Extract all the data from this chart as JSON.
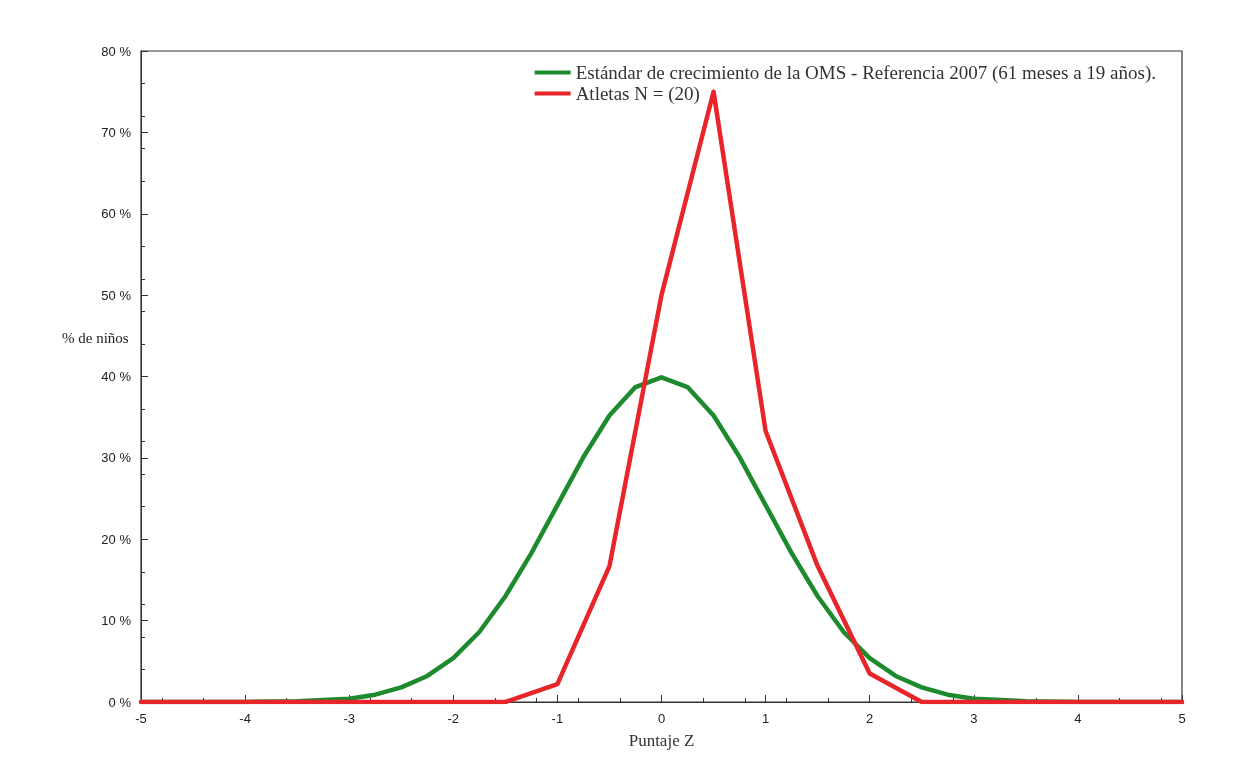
{
  "chart_data": {
    "type": "line",
    "xlabel": "Puntaje Z",
    "ylabel": "% de niños",
    "xlim": [
      -5,
      5
    ],
    "xticks": [
      -5,
      -4,
      -3,
      -2,
      -1,
      0,
      1,
      2,
      3,
      4,
      5
    ],
    "ylim": [
      0,
      80
    ],
    "yticks": [
      {
        "value": 0,
        "label": "0 %"
      },
      {
        "value": 10,
        "label": "10 %"
      },
      {
        "value": 20,
        "label": "20 %"
      },
      {
        "value": 30,
        "label": "30 %"
      },
      {
        "value": 40,
        "label": "40 %"
      },
      {
        "value": 50,
        "label": "50 %"
      },
      {
        "value": 60,
        "label": "60 %"
      },
      {
        "value": 70,
        "label": "70 %"
      },
      {
        "value": 80,
        "label": "80 %"
      }
    ],
    "grid": false,
    "legend": "top right",
    "marker": "none",
    "line_style": "solid",
    "series": [
      {
        "name": "Estándar de crecimiento de la OMS - Referencia 2007 (61 meses a 19 años).",
        "color": "#1e8a2e",
        "x": [
          -5,
          -4,
          -3.5,
          -3,
          -2.75,
          -2.5,
          -2.25,
          -2,
          -1.75,
          -1.5,
          -1.25,
          -1,
          -0.75,
          -0.5,
          -0.25,
          0,
          0.25,
          0.5,
          0.75,
          1,
          1.25,
          1.5,
          1.75,
          2,
          2.25,
          2.5,
          2.75,
          3,
          3.5,
          4,
          5
        ],
        "values": [
          0,
          0,
          0.1,
          0.4,
          0.9,
          1.8,
          3.2,
          5.4,
          8.6,
          13,
          18.3,
          24.2,
          30.1,
          35.2,
          38.7,
          39.9,
          38.7,
          35.2,
          30.1,
          24.2,
          18.3,
          13,
          8.6,
          5.4,
          3.2,
          1.8,
          0.9,
          0.4,
          0.1,
          0,
          0
        ]
      },
      {
        "name": "Atletas N = (20)",
        "color": "#e8252b",
        "x": [
          -5,
          -1.5,
          -1,
          -0.5,
          0,
          0.5,
          1,
          1.5,
          2,
          2.5,
          5
        ],
        "values": [
          0,
          0,
          2.2,
          16.7,
          50,
          75,
          33.3,
          16.7,
          3.5,
          0,
          0
        ]
      }
    ]
  }
}
